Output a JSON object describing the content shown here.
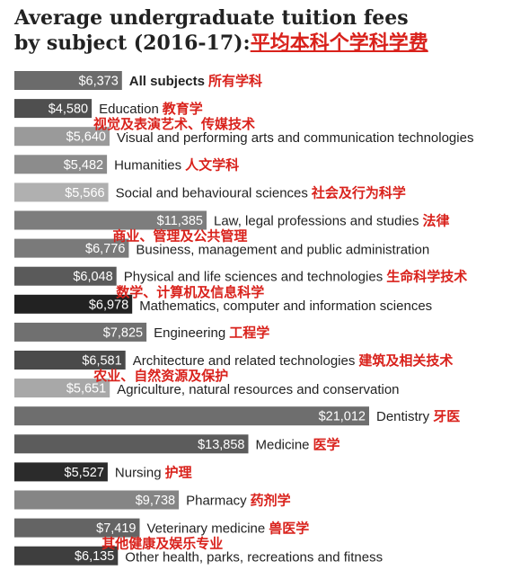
{
  "title_line1": "Average undergraduate tuition fees",
  "title_line2_en": "by subject (2016-17):",
  "title_line2_zh": "平均本科个学科学费",
  "chart_data": {
    "type": "bar",
    "orientation": "horizontal",
    "title": "Average undergraduate tuition fees by subject (2016-17)",
    "categories": [
      "All subjects",
      "Education",
      "Visual and performing arts and communication technologies",
      "Humanities",
      "Social and behavioural sciences",
      "Law, legal professions and studies",
      "Business, management and public administration",
      "Physical and life sciences and technologies",
      "Mathematics, computer and information sciences",
      "Engineering",
      "Architecture and related technologies",
      "Agriculture, natural resources and conservation",
      "Dentistry",
      "Medicine",
      "Nursing",
      "Pharmacy",
      "Veterinary medicine",
      "Other health, parks, recreations and fitness"
    ],
    "categories_zh": [
      "所有学科",
      "教育学",
      "视觉及表演艺术、传媒技术",
      "人文学科",
      "社会及行为科学",
      "法律",
      "商业、管理及公共管理",
      "生命科学技术",
      "数学、计算机及信息科学",
      "工程学",
      "建筑及相关技术",
      "农业、自然资源及保护",
      "牙医",
      "医学",
      "护理",
      "药剂学",
      "兽医学",
      "其他健康及娱乐专业"
    ],
    "values": [
      6373,
      4580,
      5640,
      5482,
      5566,
      11385,
      6776,
      6048,
      6978,
      7825,
      6581,
      5651,
      21012,
      13858,
      5527,
      9738,
      7419,
      6135
    ],
    "value_labels": [
      "$6,373",
      "$4,580",
      "$5,640",
      "$5,482",
      "$5,566",
      "$11,385",
      "$6,776",
      "$6,048",
      "$6,978",
      "$7,825",
      "$6,581",
      "$5,651",
      "$21,012",
      "$13,858",
      "$5,527",
      "$9,738",
      "$7,419",
      "$6,135"
    ],
    "bar_colors": [
      "#6b6b6b",
      "#4f4f4f",
      "#9a9a9a",
      "#8c8c8c",
      "#b0b0b0",
      "#7d7d7d",
      "#7a7a7a",
      "#5a5a5a",
      "#222222",
      "#707070",
      "#4a4a4a",
      "#a8a8a8",
      "#6e6e6e",
      "#5c5c5c",
      "#2b2b2b",
      "#858585",
      "#646464",
      "#3e3e3e"
    ],
    "chinese_label_color": "#d9221c",
    "xlim": [
      0,
      21012
    ]
  }
}
